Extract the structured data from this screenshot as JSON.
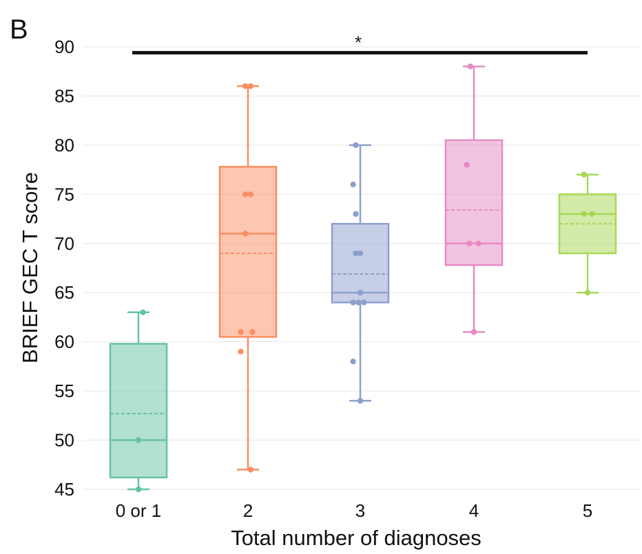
{
  "panel_label": "B",
  "chart_data": {
    "type": "box",
    "xlabel": "Total number of diagnoses",
    "ylabel": "BRIEF GEC T score",
    "ylim": [
      45,
      90
    ],
    "yticks": [
      45,
      50,
      55,
      60,
      65,
      70,
      75,
      80,
      85,
      90
    ],
    "grid": "horizontal",
    "categories": [
      "0 or 1",
      "2",
      "3",
      "4",
      "5"
    ],
    "colors": [
      "#66c2a5",
      "#fc8d62",
      "#8da0cb",
      "#e78ac3",
      "#a6d854"
    ],
    "boxes": [
      {
        "category": "0 or 1",
        "whisker_low": 45,
        "q1": 46.2,
        "median": 50,
        "q3": 59.8,
        "whisker_high": 63,
        "mean": 52.7,
        "points": [
          [
            0.05,
            63
          ],
          [
            0.0,
            50
          ],
          [
            0.0,
            45
          ]
        ]
      },
      {
        "category": "2",
        "whisker_low": 47,
        "q1": 60.5,
        "median": 71,
        "q3": 77.8,
        "whisker_high": 86,
        "mean": 69,
        "points": [
          [
            -0.03,
            86
          ],
          [
            0.03,
            86
          ],
          [
            -0.03,
            75
          ],
          [
            0.03,
            75
          ],
          [
            -0.03,
            71
          ],
          [
            -0.08,
            61
          ],
          [
            0.05,
            61
          ],
          [
            -0.08,
            59
          ],
          [
            0.03,
            47
          ]
        ]
      },
      {
        "category": "3",
        "whisker_low": 54,
        "q1": 64,
        "median": 65,
        "q3": 72,
        "whisker_high": 80,
        "mean": 66.9,
        "points": [
          [
            -0.05,
            80
          ],
          [
            -0.08,
            76
          ],
          [
            -0.05,
            73
          ],
          [
            -0.05,
            69
          ],
          [
            0.0,
            69
          ],
          [
            0.0,
            65
          ],
          [
            -0.08,
            64
          ],
          [
            -0.02,
            64
          ],
          [
            0.04,
            64
          ],
          [
            -0.08,
            58
          ],
          [
            0.0,
            54
          ]
        ]
      },
      {
        "category": "4",
        "whisker_low": 61,
        "q1": 67.8,
        "median": 70,
        "q3": 80.5,
        "whisker_high": 88,
        "mean": 73.4,
        "points": [
          [
            -0.04,
            88
          ],
          [
            -0.08,
            78
          ],
          [
            -0.05,
            70
          ],
          [
            0.05,
            70
          ],
          [
            0.0,
            61
          ]
        ]
      },
      {
        "category": "5",
        "whisker_low": 65,
        "q1": 69,
        "median": 73,
        "q3": 75,
        "whisker_high": 77,
        "mean": 72,
        "points": [
          [
            -0.04,
            77
          ],
          [
            -0.04,
            73
          ],
          [
            0.05,
            73
          ],
          [
            0.0,
            65
          ]
        ]
      }
    ],
    "significance": {
      "from": "0 or 1",
      "to": "5",
      "label": "*",
      "y": 89.4
    }
  }
}
